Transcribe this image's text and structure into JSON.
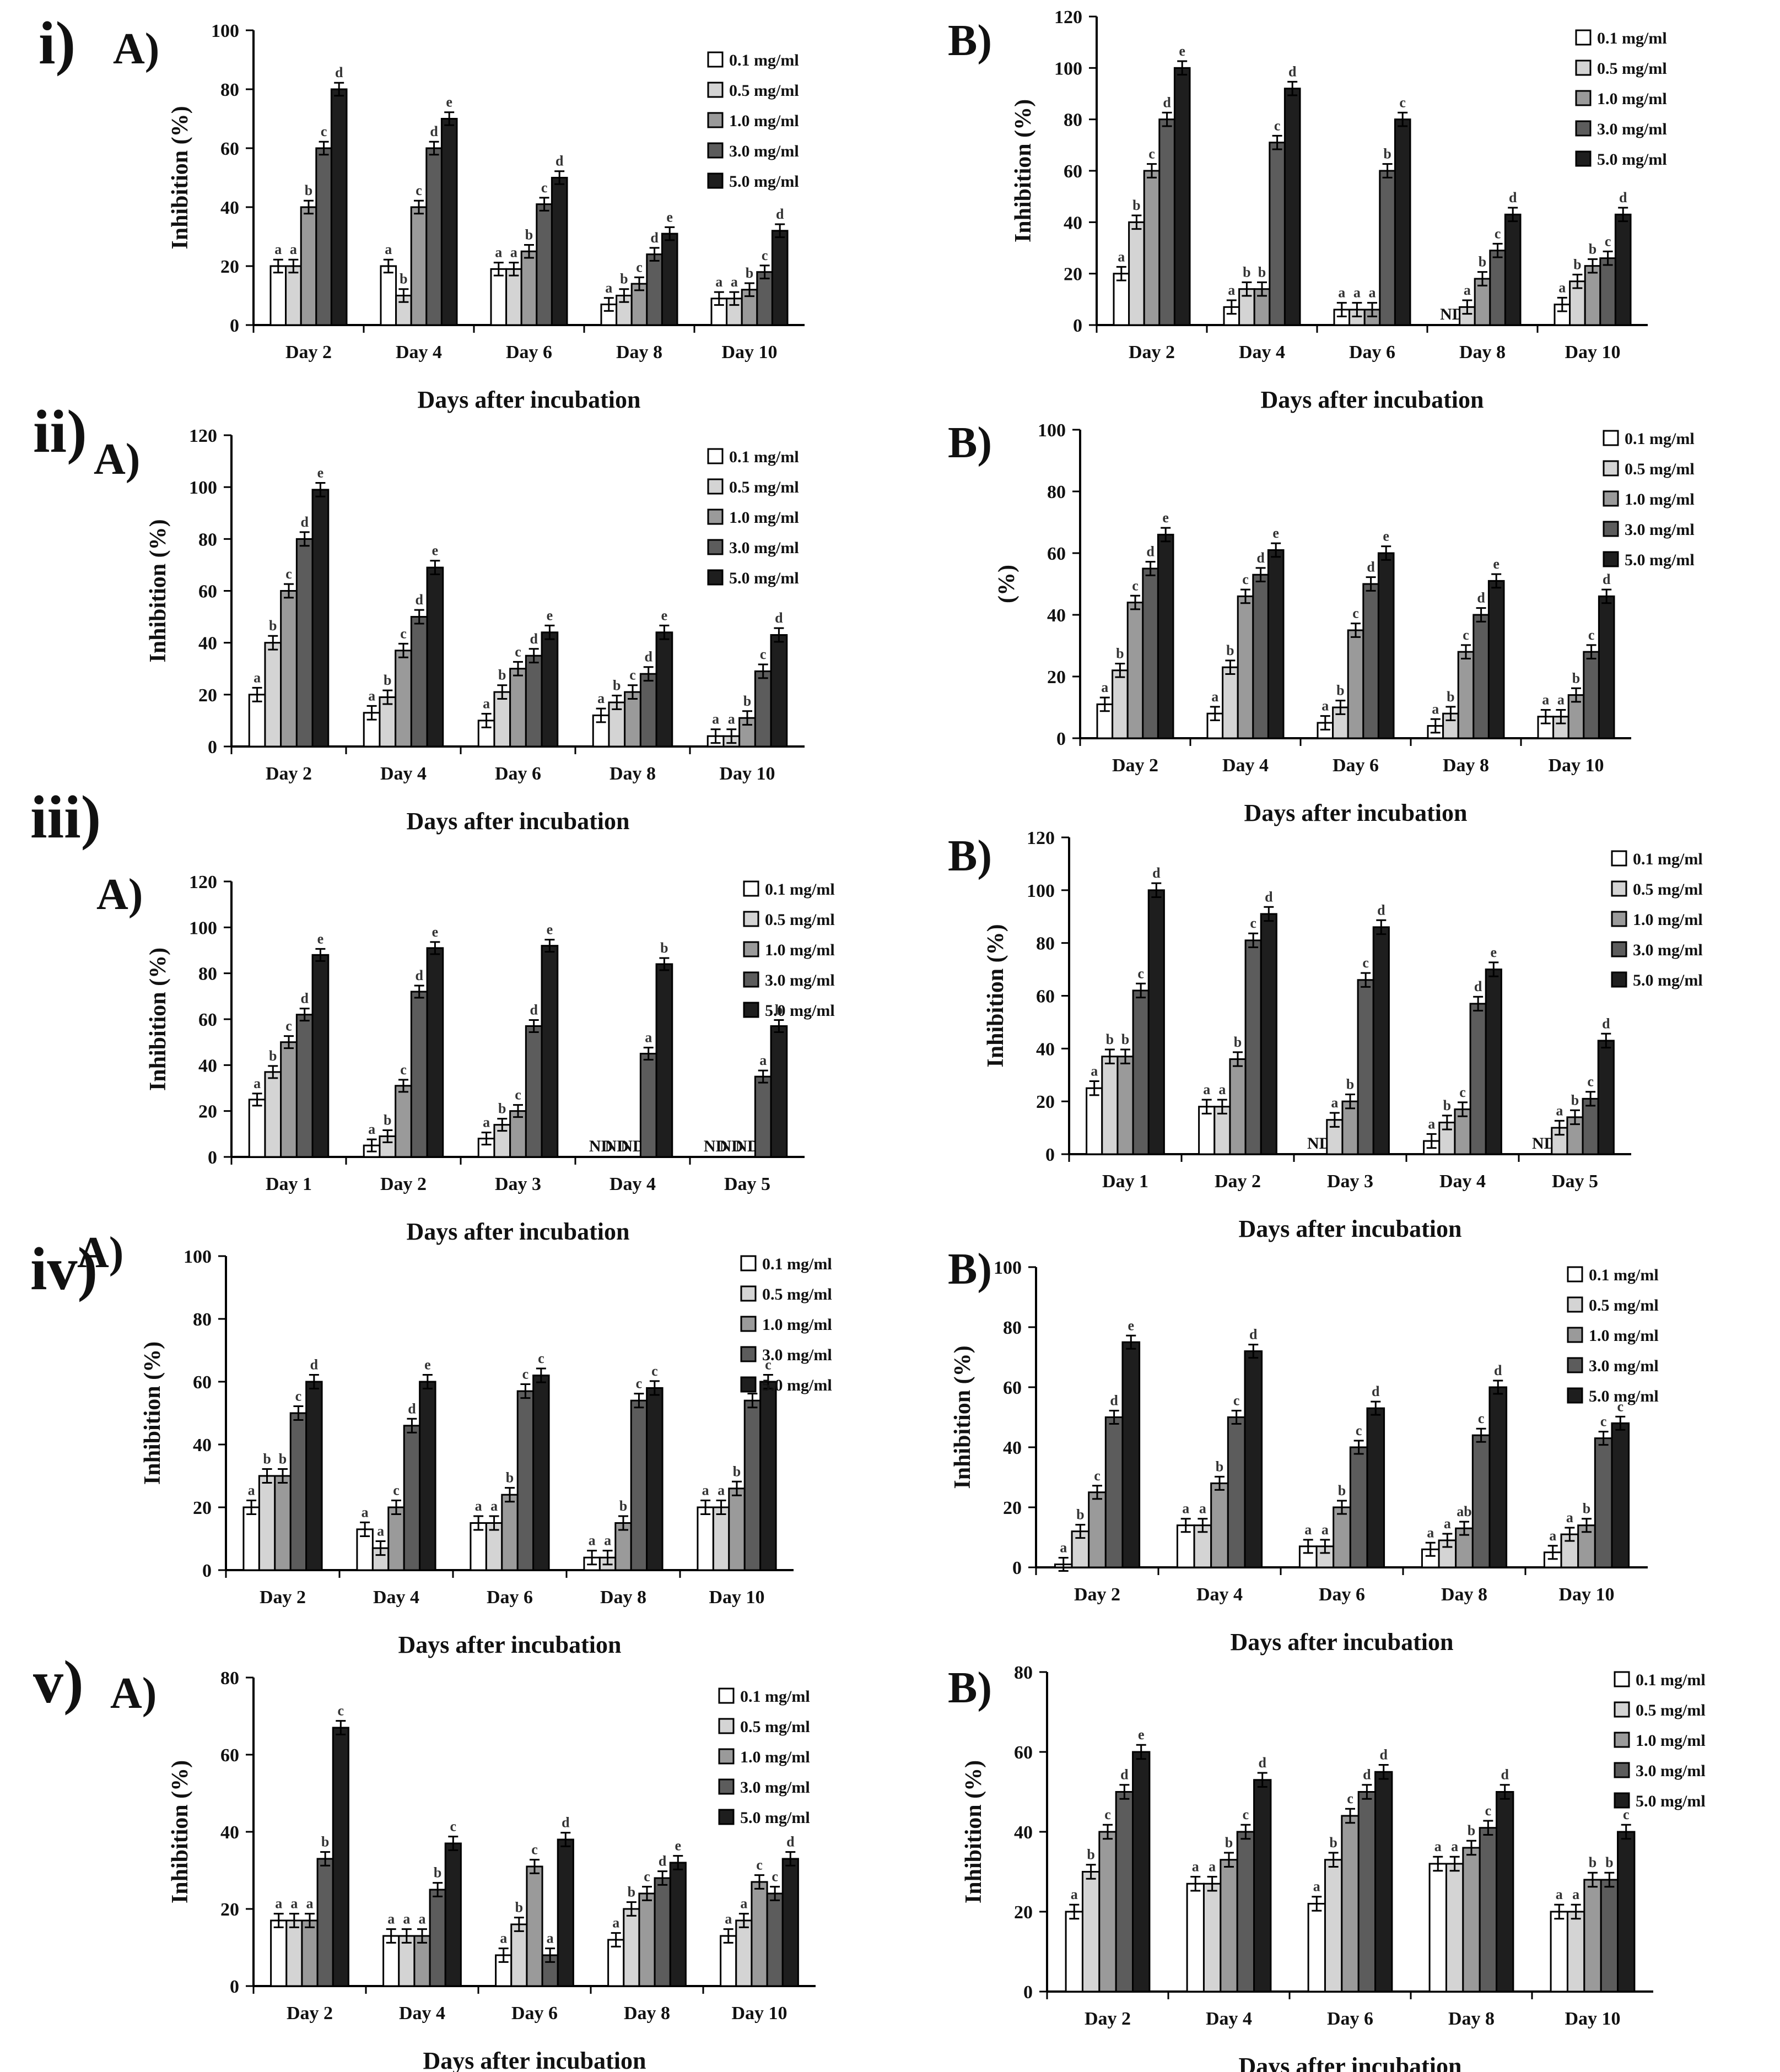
{
  "figure": {
    "row_labels": [
      "i)",
      "ii)",
      "iii)",
      "iv)",
      "v)"
    ],
    "legend": [
      "0.1 mg/ml",
      "0.5 mg/ml",
      "1.0 mg/ml",
      "3.0 mg/ml",
      "5.0 mg/ml"
    ],
    "colors": [
      "#ffffff",
      "#d4d4d4",
      "#9a9a9a",
      "#5c5c5c",
      "#1e1e1e"
    ]
  },
  "chart_data": [
    {
      "row": "i)",
      "panel": "A)",
      "type": "bar",
      "xlabel": "Days after incubation",
      "ylabel": "Inhibition  (%)",
      "ylim": [
        0,
        100
      ],
      "yticks": [
        0,
        20,
        40,
        60,
        80,
        100
      ],
      "categories": [
        "Day 2",
        "Day 4",
        "Day 6",
        "Day 8",
        "Day 10"
      ],
      "series": [
        {
          "name": "0.1 mg/ml",
          "values": [
            20,
            20,
            19,
            7,
            9
          ],
          "labels": [
            "a",
            "a",
            "a",
            "a",
            "a"
          ]
        },
        {
          "name": "0.5 mg/ml",
          "values": [
            20,
            10,
            19,
            10,
            9
          ],
          "labels": [
            "a",
            "b",
            "a",
            "b",
            "a"
          ]
        },
        {
          "name": "1.0 mg/ml",
          "values": [
            40,
            40,
            25,
            14,
            12
          ],
          "labels": [
            "b",
            "c",
            "b",
            "c",
            "b"
          ]
        },
        {
          "name": "3.0 mg/ml",
          "values": [
            60,
            60,
            41,
            24,
            18
          ],
          "labels": [
            "c",
            "d",
            "c",
            "d",
            "c"
          ]
        },
        {
          "name": "5.0 mg/ml",
          "values": [
            80,
            70,
            50,
            31,
            32
          ],
          "labels": [
            "d",
            "e",
            "d",
            "e",
            "d"
          ]
        }
      ]
    },
    {
      "row": "i)",
      "panel": "B)",
      "type": "bar",
      "xlabel": "Days after incubation",
      "ylabel": "Inhibition  (%)",
      "ylim": [
        0,
        120
      ],
      "yticks": [
        0,
        20,
        40,
        60,
        80,
        100,
        120
      ],
      "categories": [
        "Day 2",
        "Day 4",
        "Day 6",
        "Day 8",
        "Day 10"
      ],
      "series": [
        {
          "name": "0.1 mg/ml",
          "values": [
            20,
            7,
            6,
            0,
            8
          ],
          "labels": [
            "a",
            "a",
            "a",
            "ND",
            "a"
          ]
        },
        {
          "name": "0.5 mg/ml",
          "values": [
            40,
            14,
            6,
            7,
            17
          ],
          "labels": [
            "b",
            "b",
            "a",
            "a",
            "b"
          ]
        },
        {
          "name": "1.0 mg/ml",
          "values": [
            60,
            14,
            6,
            18,
            23
          ],
          "labels": [
            "c",
            "b",
            "a",
            "b",
            "b"
          ]
        },
        {
          "name": "3.0 mg/ml",
          "values": [
            80,
            71,
            60,
            29,
            26
          ],
          "labels": [
            "d",
            "c",
            "b",
            "c",
            "c"
          ]
        },
        {
          "name": "5.0 mg/ml",
          "values": [
            100,
            92,
            80,
            43,
            43
          ],
          "labels": [
            "e",
            "d",
            "c",
            "d",
            "d"
          ]
        }
      ]
    },
    {
      "row": "ii)",
      "panel": "A)",
      "type": "bar",
      "xlabel": "Days after incubation",
      "ylabel": "Inhibition  (%)",
      "ylim": [
        0,
        120
      ],
      "yticks": [
        0,
        20,
        40,
        60,
        80,
        100,
        120
      ],
      "categories": [
        "Day 2",
        "Day 4",
        "Day 6",
        "Day 8",
        "Day 10"
      ],
      "series": [
        {
          "name": "0.1 mg/ml",
          "values": [
            20,
            13,
            10,
            12,
            4
          ],
          "labels": [
            "a",
            "a",
            "a",
            "a",
            "a"
          ]
        },
        {
          "name": "0.5 mg/ml",
          "values": [
            40,
            19,
            21,
            17,
            4
          ],
          "labels": [
            "b",
            "b",
            "b",
            "b",
            "a"
          ]
        },
        {
          "name": "1.0 mg/ml",
          "values": [
            60,
            37,
            30,
            21,
            11
          ],
          "labels": [
            "c",
            "c",
            "c",
            "c",
            "b"
          ]
        },
        {
          "name": "3.0 mg/ml",
          "values": [
            80,
            50,
            35,
            28,
            29
          ],
          "labels": [
            "d",
            "d",
            "d",
            "d",
            "c"
          ]
        },
        {
          "name": "5.0 mg/ml",
          "values": [
            99,
            69,
            44,
            44,
            43
          ],
          "labels": [
            "e",
            "e",
            "e",
            "e",
            "d"
          ]
        }
      ]
    },
    {
      "row": "ii)",
      "panel": "B)",
      "type": "bar",
      "xlabel": "Days after incubation",
      "ylabel": "(%)",
      "ylim": [
        0,
        100
      ],
      "yticks": [
        0,
        20,
        40,
        60,
        80,
        100
      ],
      "categories": [
        "Day 2",
        "Day 4",
        "Day 6",
        "Day 8",
        "Day 10"
      ],
      "series": [
        {
          "name": "0.1 mg/ml",
          "values": [
            11,
            8,
            5,
            4,
            7
          ],
          "labels": [
            "a",
            "a",
            "a",
            "a",
            "a"
          ]
        },
        {
          "name": "0.5 mg/ml",
          "values": [
            22,
            23,
            10,
            8,
            7
          ],
          "labels": [
            "b",
            "b",
            "b",
            "b",
            "a"
          ]
        },
        {
          "name": "1.0 mg/ml",
          "values": [
            44,
            46,
            35,
            28,
            14
          ],
          "labels": [
            "c",
            "c",
            "c",
            "c",
            "b"
          ]
        },
        {
          "name": "3.0 mg/ml",
          "values": [
            55,
            53,
            50,
            40,
            28
          ],
          "labels": [
            "d",
            "d",
            "d",
            "d",
            "c"
          ]
        },
        {
          "name": "5.0 mg/ml",
          "values": [
            66,
            61,
            60,
            51,
            46
          ],
          "labels": [
            "e",
            "e",
            "e",
            "e",
            "d"
          ]
        }
      ]
    },
    {
      "row": "iii)",
      "panel": "A)",
      "type": "bar",
      "xlabel": "Days after incubation",
      "ylabel": "Inhibition  (%)",
      "ylim": [
        0,
        120
      ],
      "yticks": [
        0,
        20,
        40,
        60,
        80,
        100,
        120
      ],
      "categories": [
        "Day 1",
        "Day 2",
        "Day 3",
        "Day 4",
        "Day 5"
      ],
      "series": [
        {
          "name": "0.1 mg/ml",
          "values": [
            25,
            5,
            8,
            0,
            0
          ],
          "labels": [
            "a",
            "a",
            "a",
            "ND",
            "ND"
          ]
        },
        {
          "name": "0.5 mg/ml",
          "values": [
            37,
            9,
            14,
            0,
            0
          ],
          "labels": [
            "b",
            "b",
            "b",
            "ND",
            "ND"
          ]
        },
        {
          "name": "1.0 mg/ml",
          "values": [
            50,
            31,
            20,
            0,
            0
          ],
          "labels": [
            "c",
            "c",
            "c",
            "ND",
            "ND"
          ]
        },
        {
          "name": "3.0 mg/ml",
          "values": [
            62,
            72,
            57,
            45,
            35
          ],
          "labels": [
            "d",
            "d",
            "d",
            "a",
            "a"
          ]
        },
        {
          "name": "5.0 mg/ml",
          "values": [
            88,
            91,
            92,
            84,
            57
          ],
          "labels": [
            "e",
            "e",
            "e",
            "b",
            "b"
          ]
        }
      ]
    },
    {
      "row": "iii)",
      "panel": "B)",
      "type": "bar",
      "xlabel": "Days after incubation",
      "ylabel": "Inhibition  (%)",
      "ylim": [
        0,
        120
      ],
      "yticks": [
        0,
        20,
        40,
        60,
        80,
        100,
        120
      ],
      "categories": [
        "Day 1",
        "Day 2",
        "Day 3",
        "Day 4",
        "Day 5"
      ],
      "series": [
        {
          "name": "0.1 mg/ml",
          "values": [
            25,
            18,
            0,
            5,
            0
          ],
          "labels": [
            "a",
            "a",
            "ND",
            "a",
            "ND"
          ]
        },
        {
          "name": "0.5 mg/ml",
          "values": [
            37,
            18,
            13,
            12,
            10
          ],
          "labels": [
            "b",
            "a",
            "a",
            "b",
            "a"
          ]
        },
        {
          "name": "1.0 mg/ml",
          "values": [
            37,
            36,
            20,
            17,
            14
          ],
          "labels": [
            "b",
            "b",
            "b",
            "c",
            "b"
          ]
        },
        {
          "name": "3.0 mg/ml",
          "values": [
            62,
            81,
            66,
            57,
            21
          ],
          "labels": [
            "c",
            "c",
            "c",
            "d",
            "c"
          ]
        },
        {
          "name": "5.0 mg/ml",
          "values": [
            100,
            91,
            86,
            70,
            43
          ],
          "labels": [
            "d",
            "d",
            "d",
            "e",
            "d"
          ]
        }
      ]
    },
    {
      "row": "iv)",
      "panel": "A)",
      "type": "bar",
      "xlabel": "Days after incubation",
      "ylabel": "Inhibition  (%)",
      "ylim": [
        0,
        100
      ],
      "yticks": [
        0,
        20,
        40,
        60,
        80,
        100
      ],
      "categories": [
        "Day 2",
        "Day 4",
        "Day 6",
        "Day 8",
        "Day 10"
      ],
      "series": [
        {
          "name": "0.1 mg/ml",
          "values": [
            20,
            13,
            15,
            4,
            20
          ],
          "labels": [
            "a",
            "a",
            "a",
            "a",
            "a"
          ]
        },
        {
          "name": "0.5 mg/ml",
          "values": [
            30,
            7,
            15,
            4,
            20
          ],
          "labels": [
            "b",
            "a",
            "a",
            "a",
            "a"
          ]
        },
        {
          "name": "1.0 mg/ml",
          "values": [
            30,
            20,
            24,
            15,
            26
          ],
          "labels": [
            "b",
            "c",
            "b",
            "b",
            "b"
          ]
        },
        {
          "name": "3.0 mg/ml",
          "values": [
            50,
            46,
            57,
            54,
            54
          ],
          "labels": [
            "c",
            "d",
            "c",
            "c",
            "c"
          ]
        },
        {
          "name": "5.0 mg/ml",
          "values": [
            60,
            60,
            62,
            58,
            60
          ],
          "labels": [
            "d",
            "e",
            "c",
            "c",
            "c"
          ]
        }
      ]
    },
    {
      "row": "iv)",
      "panel": "B)",
      "type": "bar",
      "xlabel": "Days after incubation",
      "ylabel": "Inhibition (%)",
      "ylim": [
        0,
        100
      ],
      "yticks": [
        0,
        20,
        40,
        60,
        80,
        100
      ],
      "categories": [
        "Day 2",
        "Day 4",
        "Day 6",
        "Day 8",
        "Day 10"
      ],
      "series": [
        {
          "name": "0.1 mg/ml",
          "values": [
            1,
            14,
            7,
            6,
            5
          ],
          "labels": [
            "a",
            "a",
            "a",
            "a",
            "a"
          ]
        },
        {
          "name": "0.5 mg/ml",
          "values": [
            12,
            14,
            7,
            9,
            11
          ],
          "labels": [
            "b",
            "a",
            "a",
            "a",
            "a"
          ]
        },
        {
          "name": "1.0 mg/ml",
          "values": [
            25,
            28,
            20,
            13,
            14
          ],
          "labels": [
            "c",
            "b",
            "b",
            "ab",
            "b"
          ]
        },
        {
          "name": "3.0 mg/ml",
          "values": [
            50,
            50,
            40,
            44,
            43
          ],
          "labels": [
            "d",
            "c",
            "c",
            "c",
            "c"
          ]
        },
        {
          "name": "5.0 mg/ml",
          "values": [
            75,
            72,
            53,
            60,
            48
          ],
          "labels": [
            "e",
            "d",
            "d",
            "d",
            "c"
          ]
        }
      ]
    },
    {
      "row": "v)",
      "panel": "A)",
      "type": "bar",
      "xlabel": "Days after incubation",
      "ylabel": "Inhibition  (%)",
      "ylim": [
        0,
        80
      ],
      "yticks": [
        0,
        20,
        40,
        60,
        80
      ],
      "categories": [
        "Day 2",
        "Day 4",
        "Day 6",
        "Day 8",
        "Day 10"
      ],
      "series": [
        {
          "name": "0.1 mg/ml",
          "values": [
            17,
            13,
            8,
            12,
            13
          ],
          "labels": [
            "a",
            "a",
            "a",
            "a",
            "a"
          ]
        },
        {
          "name": "0.5 mg/ml",
          "values": [
            17,
            13,
            16,
            20,
            17
          ],
          "labels": [
            "a",
            "a",
            "b",
            "b",
            "a"
          ]
        },
        {
          "name": "1.0 mg/ml",
          "values": [
            17,
            13,
            31,
            24,
            27
          ],
          "labels": [
            "a",
            "a",
            "c",
            "c",
            "c"
          ]
        },
        {
          "name": "3.0 mg/ml",
          "values": [
            33,
            25,
            8,
            28,
            24
          ],
          "labels": [
            "b",
            "b",
            "a",
            "d",
            "c"
          ]
        },
        {
          "name": "5.0 mg/ml",
          "values": [
            67,
            37,
            38,
            32,
            33
          ],
          "labels": [
            "c",
            "c",
            "d",
            "e",
            "d"
          ]
        }
      ]
    },
    {
      "row": "v)",
      "panel": "B)",
      "type": "bar",
      "xlabel": "Days after incubation",
      "ylabel": "Inhibition (%)",
      "ylim": [
        0,
        80
      ],
      "yticks": [
        0,
        20,
        40,
        60,
        80
      ],
      "categories": [
        "Day 2",
        "Day 4",
        "Day 6",
        "Day 8",
        "Day 10"
      ],
      "series": [
        {
          "name": "0.1 mg/ml",
          "values": [
            20,
            27,
            22,
            32,
            20
          ],
          "labels": [
            "a",
            "a",
            "a",
            "a",
            "a"
          ]
        },
        {
          "name": "0.5 mg/ml",
          "values": [
            30,
            27,
            33,
            32,
            20
          ],
          "labels": [
            "b",
            "a",
            "b",
            "a",
            "a"
          ]
        },
        {
          "name": "1.0 mg/ml",
          "values": [
            40,
            33,
            44,
            36,
            28
          ],
          "labels": [
            "c",
            "b",
            "c",
            "b",
            "b"
          ]
        },
        {
          "name": "3.0 mg/ml",
          "values": [
            50,
            40,
            50,
            41,
            28
          ],
          "labels": [
            "d",
            "c",
            "d",
            "c",
            "b"
          ]
        },
        {
          "name": "5.0 mg/ml",
          "values": [
            60,
            53,
            55,
            50,
            40
          ],
          "labels": [
            "e",
            "d",
            "d",
            "d",
            "c"
          ]
        }
      ]
    }
  ]
}
